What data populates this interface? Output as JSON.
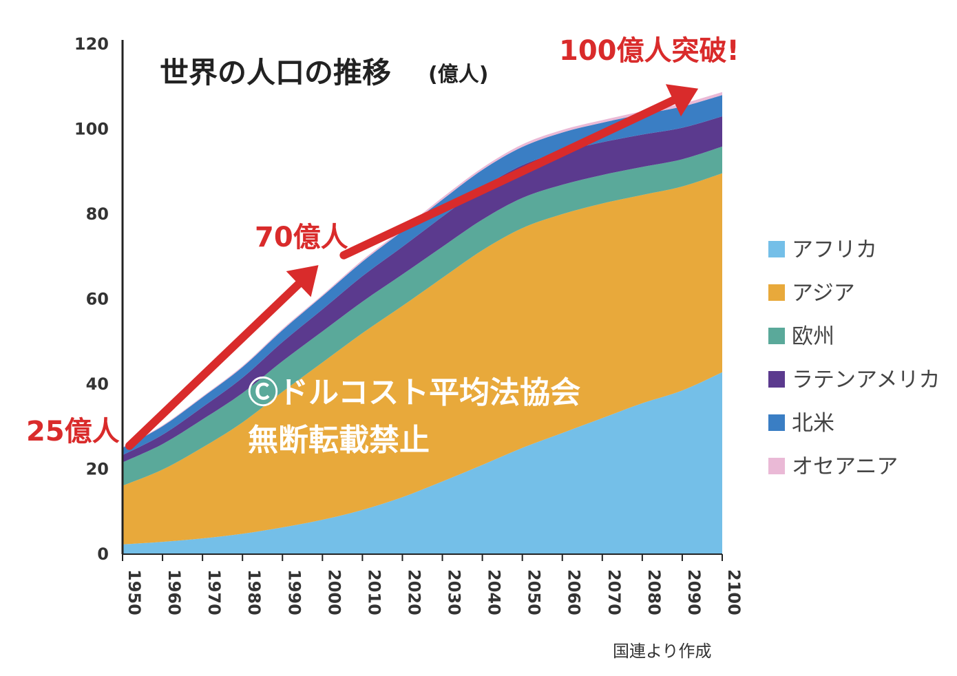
{
  "chart_data": {
    "type": "area",
    "stacked": true,
    "title": "世界の人口の推移",
    "title_unit": "(億人)",
    "x": [
      1950,
      1960,
      1970,
      1980,
      1990,
      2000,
      2010,
      2020,
      2030,
      2040,
      2050,
      2060,
      2070,
      2080,
      2090,
      2100
    ],
    "x_tick_labels": [
      "1950",
      "1960",
      "1970",
      "1980",
      "1990",
      "2000",
      "2010",
      "2020",
      "2030",
      "2040",
      "2050",
      "2060",
      "2070",
      "2080",
      "2090",
      "2100"
    ],
    "y_ticks": [
      0,
      20,
      40,
      60,
      80,
      100,
      120
    ],
    "y_tick_labels": [
      "0",
      "20",
      "40",
      "60",
      "80",
      "100",
      "120"
    ],
    "ylim": [
      0,
      120
    ],
    "series": [
      {
        "name": "アフリカ",
        "color": "#74bfe8",
        "values": [
          2.3,
          2.9,
          3.7,
          4.8,
          6.3,
          8.1,
          10.4,
          13.4,
          17.1,
          21.0,
          25.0,
          28.5,
          32.0,
          35.5,
          38.5,
          42.8
        ]
      },
      {
        "name": "アジア",
        "color": "#e8a93b",
        "values": [
          13.8,
          17.0,
          21.4,
          26.2,
          31.9,
          37.0,
          41.6,
          45.0,
          47.9,
          50.5,
          51.7,
          51.5,
          50.5,
          49.0,
          48.0,
          46.8
        ]
      },
      {
        "name": "欧州",
        "color": "#5aa99a",
        "values": [
          5.5,
          6.0,
          6.6,
          6.9,
          7.2,
          7.3,
          7.4,
          7.4,
          7.3,
          7.2,
          7.1,
          6.9,
          6.7,
          6.6,
          6.4,
          6.3
        ]
      },
      {
        "name": "ラテンアメリカ",
        "color": "#5b3a8e",
        "values": [
          1.7,
          2.2,
          2.9,
          3.6,
          4.5,
          5.2,
          6.0,
          6.5,
          7.1,
          7.5,
          7.7,
          7.8,
          7.7,
          7.6,
          7.4,
          7.1
        ]
      },
      {
        "name": "北米",
        "color": "#3a7ec4",
        "values": [
          1.7,
          2.0,
          2.3,
          2.5,
          2.8,
          3.1,
          3.4,
          3.7,
          4.0,
          4.2,
          4.3,
          4.5,
          4.6,
          4.8,
          5.0,
          5.0
        ]
      },
      {
        "name": "オセアニア",
        "color": "#eab9d6",
        "values": [
          0.15,
          0.2,
          0.2,
          0.25,
          0.3,
          0.3,
          0.4,
          0.4,
          0.5,
          0.5,
          0.6,
          0.6,
          0.6,
          0.7,
          0.7,
          0.7
        ]
      }
    ],
    "legend_position": "right",
    "annotations": [
      {
        "text": "25億人",
        "year": 1950,
        "value": 25
      },
      {
        "text": "70億人",
        "year": 2005,
        "value": 70
      },
      {
        "text": "100億人突破!",
        "year": 2095,
        "value": 110
      }
    ],
    "grid": false,
    "source": "国連より作成"
  },
  "colors": {
    "annotation_red": "#d92b2b",
    "axis": "#222222"
  },
  "watermark": {
    "line1": "Ⓒドルコスト平均法協会",
    "line2": "無断転載禁止"
  }
}
